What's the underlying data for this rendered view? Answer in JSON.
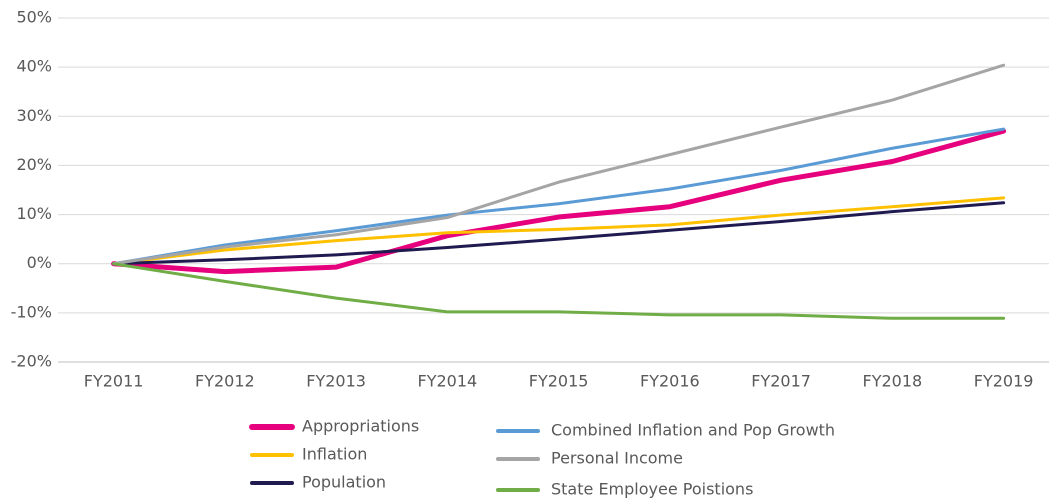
{
  "chart_data": {
    "type": "line",
    "categories": [
      "FY2011",
      "FY2012",
      "FY2013",
      "FY2014",
      "FY2015",
      "FY2016",
      "FY2017",
      "FY2018",
      "FY2019"
    ],
    "series": [
      {
        "name": "Appropriations",
        "color": "#e6007e",
        "width": 5,
        "values": [
          0,
          -1.6,
          -0.7,
          5.7,
          9.5,
          11.6,
          17.0,
          20.8,
          27.0
        ]
      },
      {
        "name": "Inflation",
        "color": "#ffc000",
        "width": 3,
        "values": [
          0,
          2.8,
          4.7,
          6.3,
          7.0,
          7.9,
          9.9,
          11.6,
          13.4
        ]
      },
      {
        "name": "Population",
        "color": "#1f1a4f",
        "width": 3,
        "values": [
          0,
          0.8,
          1.8,
          3.3,
          5.0,
          6.8,
          8.6,
          10.6,
          12.4
        ]
      },
      {
        "name": "Combined Inflation and Pop Growth",
        "color": "#5b9bd5",
        "width": 3,
        "values": [
          0,
          3.8,
          6.7,
          9.9,
          12.2,
          15.2,
          19.0,
          23.5,
          27.4
        ]
      },
      {
        "name": "Personal Income",
        "color": "#a5a5a5",
        "width": 3,
        "values": [
          0,
          3.4,
          5.9,
          9.4,
          16.6,
          22.2,
          27.8,
          33.3,
          40.4
        ]
      },
      {
        "name": "State Employee Poistions",
        "color": "#70ad47",
        "width": 3,
        "values": [
          0,
          -3.6,
          -7.0,
          -9.8,
          -9.8,
          -10.4,
          -10.4,
          -11.1,
          -11.1
        ]
      }
    ],
    "ylim": [
      -20,
      50
    ],
    "yticks": [
      {
        "value": -20,
        "label": "-20%"
      },
      {
        "value": -10,
        "label": "-10%"
      },
      {
        "value": 0,
        "label": "0%"
      },
      {
        "value": 10,
        "label": "10%"
      },
      {
        "value": 20,
        "label": "20%"
      },
      {
        "value": 30,
        "label": "30%"
      },
      {
        "value": 40,
        "label": "40%"
      },
      {
        "value": 50,
        "label": "50%"
      }
    ],
    "grid": true,
    "legend": "bottom"
  }
}
